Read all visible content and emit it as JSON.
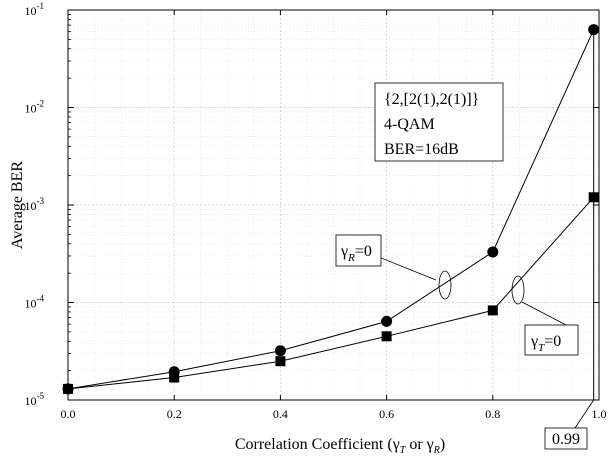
{
  "chart_data": {
    "type": "line",
    "xlabel": "Correlation Coefficient (γ_T or γ_R)",
    "ylabel": "Average BER",
    "xlim": [
      0.0,
      1.0
    ],
    "ylim": [
      1e-05,
      0.1
    ],
    "yscale": "log",
    "grid": true,
    "x_ticks": [
      "0.0",
      "0.2",
      "0.4",
      "0.6",
      "0.8",
      "1.0"
    ],
    "y_ticks": [
      {
        "base": "10",
        "exp": "-5"
      },
      {
        "base": "10",
        "exp": "-4"
      },
      {
        "base": "10",
        "exp": "-3"
      },
      {
        "base": "10",
        "exp": "-2"
      },
      {
        "base": "10",
        "exp": "-1"
      }
    ],
    "series": [
      {
        "name": "γ_R=0",
        "marker": "circle",
        "x": [
          0.0,
          0.2,
          0.4,
          0.6,
          0.8,
          0.99
        ],
        "y": [
          1.3e-05,
          1.95e-05,
          3.2e-05,
          6.4e-05,
          0.00033,
          0.063
        ]
      },
      {
        "name": "γ_T=0",
        "marker": "square",
        "x": [
          0.0,
          0.2,
          0.4,
          0.6,
          0.8,
          0.99
        ],
        "y": [
          1.3e-05,
          1.7e-05,
          2.5e-05,
          4.5e-05,
          8.3e-05,
          0.0012
        ]
      }
    ],
    "annotations": {
      "info_box": [
        "{2,[2(1),2(1)]}",
        "4-QAM",
        "BER=16dB"
      ],
      "label_gamma_r": {
        "symbol": "γ",
        "sub": "R",
        "text": "=0"
      },
      "label_gamma_t": {
        "symbol": "γ",
        "sub": "T",
        "text": "=0"
      },
      "x_marker": {
        "value": 0.99,
        "label": "0.99"
      }
    }
  }
}
